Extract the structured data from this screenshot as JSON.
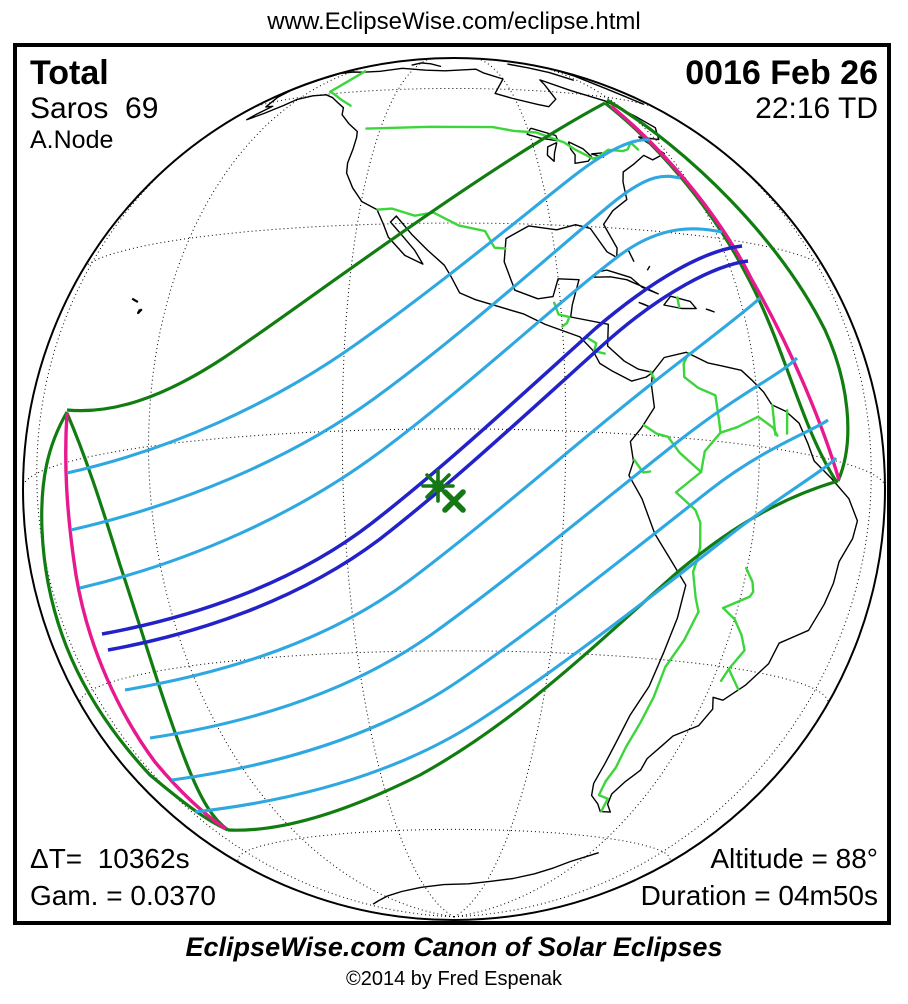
{
  "header": {
    "url": "www.EclipseWise.com/eclipse.html"
  },
  "eclipse": {
    "type": "Total",
    "saros": "Saros  69",
    "node": "A.Node",
    "date": "0016 Feb 26",
    "time": "22:16 TD",
    "delta_t": "ΔT=  10362s",
    "gamma": "Gam. = 0.0370",
    "altitude": "Altitude = 88°",
    "duration": "Duration = 04m50s"
  },
  "footer": {
    "caption": "EclipseWise.com Canon of Solar Eclipses",
    "copyright": "©2014 by Fred Espenak"
  },
  "map": {
    "projection": "orthographic globe centered on eastern Pacific / Americas",
    "graticule_spacing_degrees": 30,
    "markers": {
      "greatest_eclipse": "green asterisk near globe center",
      "greatest_duration": "green X just southeast of asterisk"
    },
    "colors": {
      "coastline": "#000000",
      "country_border_green": "#3cd53c",
      "penumbral_limit_green": "#117d11",
      "sunrise_sunset_magenta": "#e8188e",
      "eclipse_contour_cyan": "#2fa8e2",
      "central_path_blue": "#2222c8",
      "marker_green": "#157815"
    }
  }
}
